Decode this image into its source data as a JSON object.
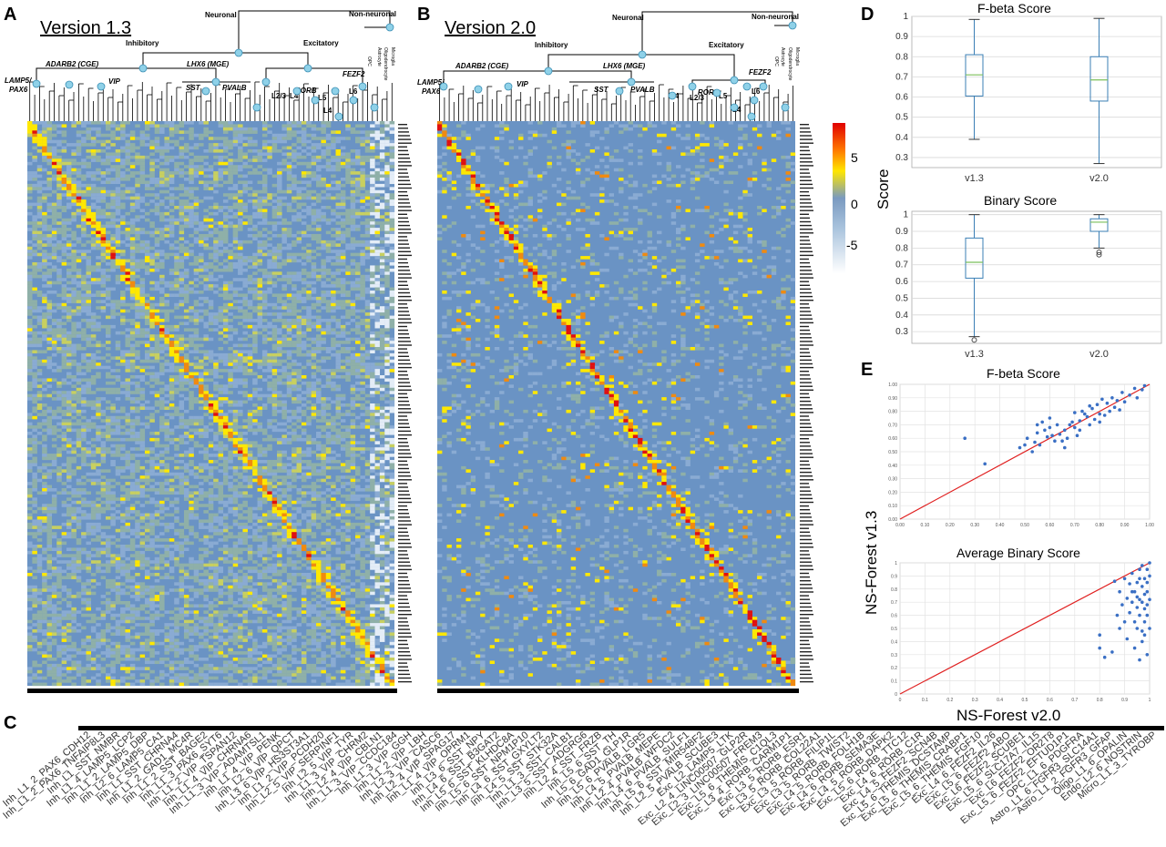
{
  "panels": {
    "A": {
      "letter": "A",
      "title": "Version 1.3"
    },
    "B": {
      "letter": "B",
      "title": "Version 2.0"
    },
    "C": {
      "letter": "C"
    },
    "D": {
      "letter": "D"
    },
    "E": {
      "letter": "E"
    }
  },
  "tree_labels": {
    "neuronal": "Neuronal",
    "non_neuronal": "Non-neuronal",
    "inhibitory": "Inhibitory",
    "excitatory": "Excitatory",
    "adarb2": "ADARB2 (CGE)",
    "lhx6": "LHX6 (MGE)",
    "lamp5": "LAMP5/",
    "pax6": "PAX6",
    "vip": "VIP",
    "sst": "SST",
    "pvalb": "PVALB",
    "rorb": "RORB",
    "fezf2": "FEZF2",
    "l23": "L2/3",
    "l4": "L4",
    "l5": "L5",
    "l6": "L6",
    "opc": "OPC",
    "astrocyte": "Astrocyte",
    "oligodendrocyte": "Oligodendrocyte",
    "microglia": "Microglia"
  },
  "colorbar": {
    "ticks": [
      "5",
      "0",
      "-5"
    ]
  },
  "panel_d": {
    "y_axis_label": "Score",
    "fbeta": {
      "title": "F-beta Score",
      "ylim": [
        0.25,
        1.0
      ],
      "yticks": [
        "1",
        "0.9",
        "0.8",
        "0.7",
        "0.6",
        "0.5",
        "0.4",
        "0.3"
      ],
      "categories": [
        "v1.3",
        "v2.0"
      ],
      "boxes": [
        {
          "name": "v1.3",
          "min": 0.39,
          "q1": 0.605,
          "median": 0.71,
          "q3": 0.81,
          "max": 0.985,
          "outliers": []
        },
        {
          "name": "v2.0",
          "min": 0.27,
          "q1": 0.58,
          "median": 0.685,
          "q3": 0.8,
          "max": 0.99,
          "outliers": []
        }
      ]
    },
    "binary": {
      "title": "Binary Score",
      "ylim": [
        0.23,
        1.02
      ],
      "yticks": [
        "1",
        "0.9",
        "0.8",
        "0.7",
        "0.6",
        "0.5",
        "0.4",
        "0.3"
      ],
      "categories": [
        "v1.3",
        "v2.0"
      ],
      "boxes": [
        {
          "name": "v1.3",
          "min": 0.27,
          "q1": 0.62,
          "median": 0.715,
          "q3": 0.86,
          "max": 1.0,
          "outliers": [
            0.25
          ]
        },
        {
          "name": "v2.0",
          "min": 0.8,
          "q1": 0.9,
          "median": 0.955,
          "q3": 0.975,
          "max": 1.0,
          "outliers": [
            0.775,
            0.76
          ]
        }
      ]
    }
  },
  "panel_e": {
    "y_axis_label": "NS-Forest v1.3",
    "x_axis_label": "NS-Forest v2.0",
    "fbeta": {
      "title": "F-beta Score",
      "type": "scatter",
      "xlim": [
        0,
        1
      ],
      "ylim": [
        0,
        1
      ],
      "xticks": [
        "0.00",
        "0.10",
        "0.20",
        "0.30",
        "0.40",
        "0.50",
        "0.60",
        "0.70",
        "0.80",
        "0.90",
        "1.00"
      ],
      "yticks": [
        "0.00",
        "0.10",
        "0.20",
        "0.30",
        "0.40",
        "0.50",
        "0.60",
        "0.70",
        "0.80",
        "0.90",
        "1.00"
      ],
      "points": [
        [
          0.26,
          0.6
        ],
        [
          0.34,
          0.41
        ],
        [
          0.48,
          0.53
        ],
        [
          0.5,
          0.55
        ],
        [
          0.51,
          0.6
        ],
        [
          0.53,
          0.5
        ],
        [
          0.54,
          0.57
        ],
        [
          0.55,
          0.64
        ],
        [
          0.55,
          0.7
        ],
        [
          0.56,
          0.55
        ],
        [
          0.57,
          0.72
        ],
        [
          0.58,
          0.66
        ],
        [
          0.59,
          0.61
        ],
        [
          0.6,
          0.68
        ],
        [
          0.61,
          0.62
        ],
        [
          0.62,
          0.58
        ],
        [
          0.63,
          0.7
        ],
        [
          0.64,
          0.63
        ],
        [
          0.65,
          0.58
        ],
        [
          0.66,
          0.53
        ],
        [
          0.67,
          0.6
        ],
        [
          0.68,
          0.7
        ],
        [
          0.69,
          0.72
        ],
        [
          0.7,
          0.79
        ],
        [
          0.71,
          0.62
        ],
        [
          0.72,
          0.73
        ],
        [
          0.73,
          0.8
        ],
        [
          0.74,
          0.78
        ],
        [
          0.75,
          0.76
        ],
        [
          0.76,
          0.84
        ],
        [
          0.77,
          0.82
        ],
        [
          0.78,
          0.74
        ],
        [
          0.79,
          0.85
        ],
        [
          0.8,
          0.72
        ],
        [
          0.81,
          0.89
        ],
        [
          0.82,
          0.77
        ],
        [
          0.83,
          0.86
        ],
        [
          0.84,
          0.8
        ],
        [
          0.85,
          0.9
        ],
        [
          0.86,
          0.83
        ],
        [
          0.87,
          0.88
        ],
        [
          0.88,
          0.81
        ],
        [
          0.89,
          0.94
        ],
        [
          0.9,
          0.87
        ],
        [
          0.92,
          0.92
        ],
        [
          0.94,
          0.97
        ],
        [
          0.95,
          0.9
        ],
        [
          0.97,
          0.96
        ],
        [
          0.98,
          0.99
        ],
        [
          0.6,
          0.75
        ],
        [
          0.66,
          0.66
        ],
        [
          0.72,
          0.66
        ],
        [
          0.76,
          0.7
        ],
        [
          0.8,
          0.78
        ],
        [
          0.7,
          0.68
        ]
      ],
      "line": [
        [
          0,
          0
        ],
        [
          1,
          1
        ]
      ]
    },
    "binary": {
      "title": "Average Binary Score",
      "type": "scatter",
      "xlim": [
        0,
        1
      ],
      "ylim": [
        0,
        1
      ],
      "xticks": [
        "0",
        "0.1",
        "0.2",
        "0.3",
        "0.4",
        "0.5",
        "0.6",
        "0.7",
        "0.8",
        "0.9",
        "1"
      ],
      "yticks": [
        "0",
        "0.1",
        "0.2",
        "0.3",
        "0.4",
        "0.5",
        "0.6",
        "0.7",
        "0.8",
        "0.9",
        "1"
      ],
      "points": [
        [
          0.8,
          0.35
        ],
        [
          0.8,
          0.45
        ],
        [
          0.82,
          0.28
        ],
        [
          0.85,
          0.32
        ],
        [
          0.86,
          0.86
        ],
        [
          0.87,
          0.6
        ],
        [
          0.88,
          0.5
        ],
        [
          0.88,
          0.78
        ],
        [
          0.89,
          0.68
        ],
        [
          0.9,
          0.88
        ],
        [
          0.9,
          0.55
        ],
        [
          0.91,
          0.42
        ],
        [
          0.91,
          0.73
        ],
        [
          0.92,
          0.62
        ],
        [
          0.92,
          0.84
        ],
        [
          0.93,
          0.7
        ],
        [
          0.93,
          0.92
        ],
        [
          0.94,
          0.55
        ],
        [
          0.94,
          0.78
        ],
        [
          0.95,
          0.66
        ],
        [
          0.95,
          0.85
        ],
        [
          0.95,
          0.5
        ],
        [
          0.96,
          0.72
        ],
        [
          0.96,
          0.95
        ],
        [
          0.96,
          0.6
        ],
        [
          0.97,
          0.82
        ],
        [
          0.97,
          0.4
        ],
        [
          0.97,
          0.7
        ],
        [
          0.97,
          0.98
        ],
        [
          0.98,
          0.65
        ],
        [
          0.98,
          0.88
        ],
        [
          0.98,
          0.55
        ],
        [
          0.98,
          0.76
        ],
        [
          0.99,
          0.95
        ],
        [
          0.99,
          0.68
        ],
        [
          0.99,
          0.3
        ],
        [
          0.99,
          0.85
        ],
        [
          0.99,
          0.6
        ],
        [
          1.0,
          1.0
        ],
        [
          1.0,
          0.72
        ],
        [
          1.0,
          0.9
        ],
        [
          0.96,
          0.26
        ],
        [
          0.94,
          0.35
        ],
        [
          0.97,
          0.48
        ],
        [
          0.95,
          0.74
        ],
        [
          0.93,
          0.78
        ],
        [
          0.99,
          0.78
        ],
        [
          1.0,
          0.5
        ],
        [
          0.98,
          0.45
        ],
        [
          0.96,
          0.88
        ]
      ],
      "line": [
        [
          0,
          0
        ],
        [
          1,
          1
        ]
      ]
    }
  },
  "panel_c": {
    "labels": [
      "Inh_L1_2_PAX6_CDH12",
      "Inh_L1_2_PAX6_TNFAIP8L3",
      "Inh_L1_SST_NMBR",
      "Inh_L1_4_LAMP5_LCP2",
      "Inh_L1_2_LAMP5_DBP",
      "Inh_L2_6_LAMP5_CA1",
      "Inh_L1_SST_CHRNA4",
      "Inh_L1_2_GAD1_MC4R",
      "Inh_L1_2_SST_BAGE2",
      "Inh_L1_3_PAX6_SYT6",
      "Inh_L1_2_VIP_TSPAN12",
      "Inh_L1_4_VIP_CHRNA6",
      "Inh_L1_3_VIP_ADAMTSL1",
      "Inh_L1_4_VIP_PENK",
      "Inh_L2_6_VIP_QPCT",
      "Inh_L3_6_VIP_HS3ST3A1",
      "Inh_L1_2_VIP_PCDH20",
      "Inh_L2_5_VIP_SERPINF1",
      "Inh_L2_5_VIP_TYR",
      "Inh_L1_3_VIP_CHRM2",
      "Inh_L2_4_VIP_CBLN1",
      "Inh_L1_3_VIP_CCDC184",
      "Inh_L1_3_VIP_GGH",
      "Inh_L1_2_VIP_LBH",
      "Inh_L2_3_VIP_CASC6",
      "Inh_L2_4_VIP_SPAG17",
      "Inh_L1_4_VIP_OPRM1",
      "Inh_L3_6_SST_NPY",
      "Inh_L4_6_SST_B3GAT2",
      "Inh_L5_6_SST_KLHDC8A",
      "Inh_L5_6_SST_NPM1P10",
      "Inh_L4_6_SST_GXYLT2",
      "Inh_L4_5_SST_STK32A",
      "Inh_L1_3_SST_CALB1",
      "Inh_L3_5_SST_ADGRG6",
      "Inh_L2_4_SST_FRZB",
      "Inh_L5_6_SST_TH",
      "Inh_L5_6_GAD1_GLP1R",
      "Inh_L5_6_PVALB_LGR5",
      "Inh_L4_5_PVALB_MEPE",
      "Inh_L2_4_PVALB_WFDC2",
      "Inh_L4_6_PVALB_SULF1",
      "Inh_L5_6_SST_MIR548F2",
      "Inh_L2_5_PVALB_SCUBE3",
      "Exc_L2_LAMP5_LTK",
      "Exc_L2_4_LINC00507_GLP2R",
      "Exc_L2_3_LINC00507_FREM3",
      "Exc_L5_6_THEMIS_C1QL3",
      "Exc_L3_4_RORB_CARM1P1",
      "Exc_L3_5_RORB_ESR1",
      "Exc_L3_5_RORB_COL22A1",
      "Exc_L3_5_RORB_FILIP1L",
      "Exc_L3_5_RORB_TWIST2",
      "Exc_L4_5_RORB_FOLH1B",
      "Exc_L4_6_RORB_SEMA3E",
      "Exc_L4_5_RORB_DAPK2",
      "Exc_L5_6_RORB_TTC12",
      "Exc_L4_6_RORB_C1R",
      "Exc_L4_5_FEZF2_SCN4B",
      "Exc_L5_6_THEMIS_DCSTAMP",
      "Exc_L5_6_THEMIS_CRABP1",
      "Exc_L5_6_THEMIS_FGF10",
      "Exc_L4_6_FEZF2_IL26",
      "Exc_L5_6_FEZF2_ABO",
      "Exc_L6_FEZF2_SCUBE1",
      "Exc_L5_6_SLC17A7_IL15",
      "Exc_L6_FEZF2_OR2T8",
      "Exc_L5_6_FEZF2_EFTUD1P1",
      "OPC_L1_6_PDGFRA",
      "Astro_L1_6_FGFR3_SLC14A1",
      "Astro_L1_2_FGFR3_GFAP",
      "Oligo_L1_6_OPALIN",
      "Endo_L2_6_NOSTRIN",
      "Micro_L1_3_TYROBP"
    ]
  },
  "heatmaps": {
    "A": {
      "type": "heatmap",
      "rows": 180,
      "cols": 75,
      "color_range": [
        -7,
        8
      ]
    },
    "B": {
      "type": "heatmap",
      "rows": 180,
      "cols": 75,
      "color_range": [
        -7,
        8
      ]
    }
  }
}
